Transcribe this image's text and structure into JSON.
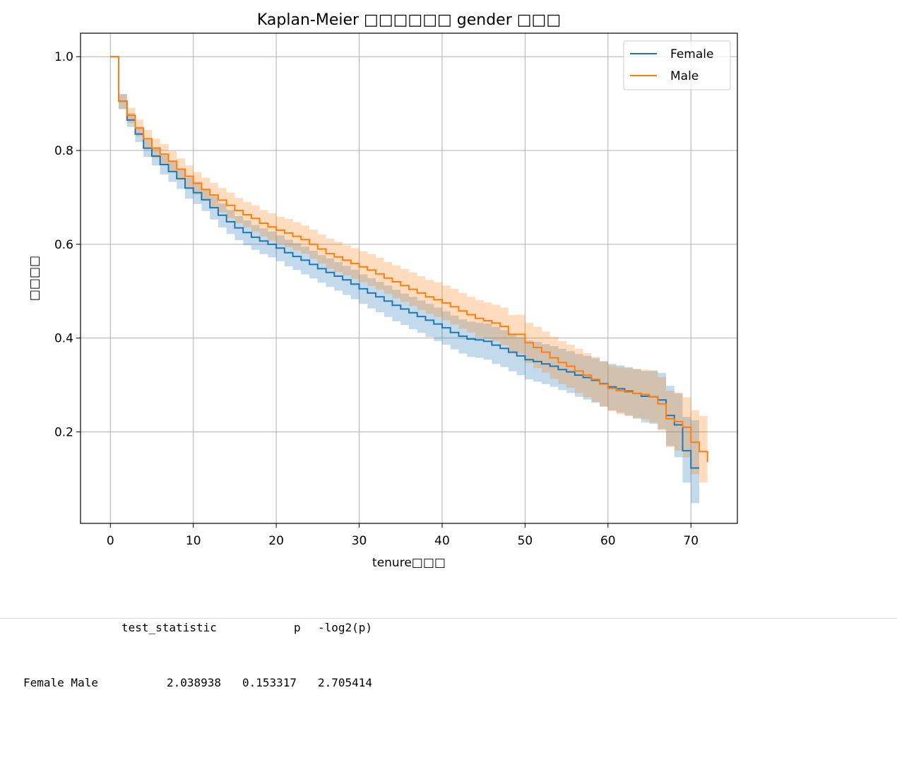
{
  "chart_data": {
    "type": "line",
    "title": "Kaplan-Meier □□□□□□ gender □□□",
    "xlabel": "tenure□□□",
    "ylabel": "□□□□",
    "xlim": [
      -3.6,
      75.6
    ],
    "ylim": [
      0.005,
      1.05
    ],
    "xticks": [
      0,
      10,
      20,
      30,
      40,
      50,
      60,
      70
    ],
    "yticks": [
      0.2,
      0.4,
      0.6,
      0.8,
      1.0
    ],
    "xtick_labels": [
      "0",
      "10",
      "20",
      "30",
      "40",
      "50",
      "60",
      "70"
    ],
    "ytick_labels": [
      "0.2",
      "0.4",
      "0.6",
      "0.8",
      "1.0"
    ],
    "grid": true,
    "legend_position": "top-right",
    "series": [
      {
        "name": "Female",
        "color": "#1f77b4",
        "band_color": "#1f77b4",
        "x": [
          0,
          1,
          2,
          3,
          4,
          5,
          6,
          7,
          8,
          9,
          10,
          11,
          12,
          13,
          14,
          15,
          16,
          17,
          18,
          19,
          20,
          21,
          22,
          23,
          24,
          25,
          26,
          27,
          28,
          29,
          30,
          31,
          32,
          33,
          34,
          35,
          36,
          37,
          38,
          39,
          40,
          41,
          42,
          43,
          44,
          45,
          46,
          47,
          48,
          49,
          50,
          51,
          52,
          53,
          54,
          55,
          56,
          57,
          58,
          59,
          60,
          61,
          62,
          63,
          64,
          65,
          66,
          67,
          68,
          69,
          70,
          71
        ],
        "y": [
          1.0,
          0.905,
          0.865,
          0.835,
          0.805,
          0.788,
          0.77,
          0.755,
          0.74,
          0.72,
          0.71,
          0.695,
          0.678,
          0.662,
          0.648,
          0.635,
          0.625,
          0.615,
          0.607,
          0.6,
          0.592,
          0.582,
          0.574,
          0.566,
          0.557,
          0.548,
          0.54,
          0.532,
          0.524,
          0.515,
          0.505,
          0.496,
          0.488,
          0.479,
          0.47,
          0.462,
          0.454,
          0.446,
          0.438,
          0.43,
          0.422,
          0.412,
          0.404,
          0.398,
          0.396,
          0.393,
          0.385,
          0.378,
          0.37,
          0.362,
          0.354,
          0.35,
          0.345,
          0.34,
          0.333,
          0.328,
          0.321,
          0.316,
          0.31,
          0.303,
          0.296,
          0.292,
          0.287,
          0.282,
          0.276,
          0.275,
          0.268,
          0.235,
          0.215,
          0.16,
          0.123,
          0.123
        ],
        "lower": [
          1.0,
          0.888,
          0.85,
          0.818,
          0.786,
          0.768,
          0.749,
          0.733,
          0.718,
          0.697,
          0.686,
          0.671,
          0.653,
          0.636,
          0.622,
          0.609,
          0.598,
          0.588,
          0.579,
          0.572,
          0.564,
          0.553,
          0.545,
          0.536,
          0.527,
          0.518,
          0.509,
          0.501,
          0.492,
          0.483,
          0.473,
          0.463,
          0.455,
          0.445,
          0.436,
          0.428,
          0.419,
          0.411,
          0.402,
          0.394,
          0.386,
          0.376,
          0.367,
          0.36,
          0.358,
          0.354,
          0.345,
          0.338,
          0.329,
          0.321,
          0.312,
          0.307,
          0.302,
          0.296,
          0.289,
          0.283,
          0.275,
          0.269,
          0.262,
          0.254,
          0.246,
          0.241,
          0.235,
          0.228,
          0.22,
          0.217,
          0.206,
          0.17,
          0.146,
          0.092,
          0.048,
          0.048
        ],
        "upper": [
          1.0,
          0.92,
          0.88,
          0.851,
          0.823,
          0.807,
          0.79,
          0.776,
          0.762,
          0.742,
          0.733,
          0.718,
          0.702,
          0.687,
          0.673,
          0.66,
          0.651,
          0.641,
          0.634,
          0.627,
          0.619,
          0.61,
          0.602,
          0.595,
          0.586,
          0.577,
          0.57,
          0.562,
          0.554,
          0.546,
          0.536,
          0.528,
          0.52,
          0.512,
          0.503,
          0.495,
          0.488,
          0.48,
          0.473,
          0.465,
          0.457,
          0.448,
          0.44,
          0.435,
          0.433,
          0.431,
          0.424,
          0.417,
          0.41,
          0.402,
          0.395,
          0.392,
          0.387,
          0.383,
          0.377,
          0.372,
          0.366,
          0.362,
          0.357,
          0.351,
          0.345,
          0.342,
          0.338,
          0.334,
          0.33,
          0.331,
          0.326,
          0.298,
          0.282,
          0.232,
          0.225,
          0.225
        ]
      },
      {
        "name": "Male",
        "color": "#ff7f0e",
        "band_color": "#ff7f0e",
        "x": [
          0,
          1,
          2,
          3,
          4,
          5,
          6,
          7,
          8,
          9,
          10,
          11,
          12,
          13,
          14,
          15,
          16,
          17,
          18,
          19,
          20,
          21,
          22,
          23,
          24,
          25,
          26,
          27,
          28,
          29,
          30,
          31,
          32,
          33,
          34,
          35,
          36,
          37,
          38,
          39,
          40,
          41,
          42,
          43,
          44,
          45,
          46,
          47,
          48,
          49,
          50,
          51,
          52,
          53,
          54,
          55,
          56,
          57,
          58,
          59,
          60,
          61,
          62,
          63,
          64,
          65,
          66,
          67,
          68,
          69,
          70,
          71,
          72
        ],
        "y": [
          1.0,
          0.905,
          0.875,
          0.848,
          0.825,
          0.805,
          0.792,
          0.777,
          0.76,
          0.745,
          0.73,
          0.717,
          0.705,
          0.694,
          0.683,
          0.672,
          0.663,
          0.655,
          0.645,
          0.637,
          0.63,
          0.624,
          0.617,
          0.61,
          0.6,
          0.59,
          0.58,
          0.573,
          0.566,
          0.559,
          0.552,
          0.545,
          0.537,
          0.528,
          0.52,
          0.512,
          0.504,
          0.496,
          0.488,
          0.482,
          0.475,
          0.467,
          0.458,
          0.45,
          0.442,
          0.437,
          0.432,
          0.425,
          0.408,
          0.408,
          0.39,
          0.38,
          0.37,
          0.358,
          0.348,
          0.34,
          0.33,
          0.321,
          0.312,
          0.302,
          0.293,
          0.288,
          0.285,
          0.282,
          0.28,
          0.275,
          0.26,
          0.228,
          0.222,
          0.21,
          0.178,
          0.158,
          0.136
        ],
        "lower": [
          1.0,
          0.889,
          0.858,
          0.83,
          0.805,
          0.784,
          0.77,
          0.755,
          0.737,
          0.721,
          0.706,
          0.692,
          0.679,
          0.668,
          0.656,
          0.645,
          0.636,
          0.627,
          0.617,
          0.608,
          0.601,
          0.594,
          0.587,
          0.58,
          0.569,
          0.559,
          0.548,
          0.541,
          0.534,
          0.526,
          0.519,
          0.511,
          0.503,
          0.494,
          0.485,
          0.477,
          0.468,
          0.46,
          0.452,
          0.445,
          0.438,
          0.429,
          0.42,
          0.412,
          0.403,
          0.398,
          0.393,
          0.385,
          0.367,
          0.366,
          0.347,
          0.336,
          0.326,
          0.313,
          0.302,
          0.294,
          0.283,
          0.274,
          0.264,
          0.254,
          0.244,
          0.238,
          0.234,
          0.23,
          0.227,
          0.22,
          0.203,
          0.168,
          0.16,
          0.146,
          0.11,
          0.092,
          0.072
        ],
        "upper": [
          1.0,
          0.92,
          0.891,
          0.866,
          0.844,
          0.825,
          0.814,
          0.799,
          0.783,
          0.768,
          0.754,
          0.742,
          0.731,
          0.72,
          0.71,
          0.699,
          0.69,
          0.683,
          0.673,
          0.666,
          0.659,
          0.654,
          0.647,
          0.64,
          0.631,
          0.621,
          0.612,
          0.605,
          0.598,
          0.592,
          0.585,
          0.579,
          0.571,
          0.562,
          0.555,
          0.547,
          0.54,
          0.532,
          0.524,
          0.519,
          0.512,
          0.505,
          0.496,
          0.488,
          0.481,
          0.476,
          0.471,
          0.465,
          0.449,
          0.45,
          0.433,
          0.424,
          0.414,
          0.403,
          0.394,
          0.386,
          0.377,
          0.368,
          0.36,
          0.35,
          0.342,
          0.338,
          0.336,
          0.334,
          0.333,
          0.33,
          0.317,
          0.288,
          0.284,
          0.274,
          0.246,
          0.234,
          0.218
        ]
      }
    ]
  },
  "output_table": {
    "header": {
      "col_test_statistic": "test_statistic",
      "col_p": "p",
      "col_neglog2p": "-log2(p)"
    },
    "row": {
      "label": "Female Male",
      "test_statistic": "2.038938",
      "p": "0.153317",
      "neglog2p": "2.705414"
    }
  }
}
